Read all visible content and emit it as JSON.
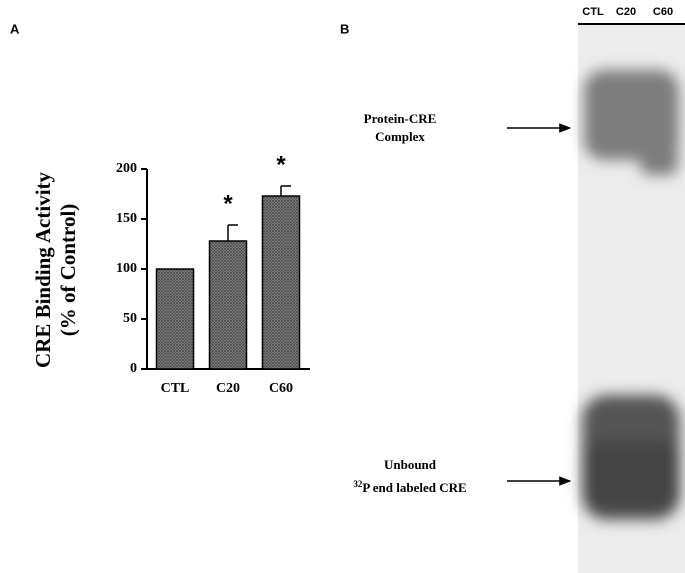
{
  "panel_labels": [
    "A",
    "B"
  ],
  "chart_data": {
    "type": "bar",
    "ylabel": [
      "CRE Binding Activity",
      "(% of Control)"
    ],
    "categories": [
      "CTL",
      "C20",
      "C60"
    ],
    "values": [
      100,
      128,
      173
    ],
    "errors": [
      0,
      16,
      10
    ],
    "annotations": [
      null,
      "*",
      "*"
    ],
    "color": "#4a4a4a",
    "ylim": [
      0,
      200
    ],
    "yticks": [
      0,
      50,
      100,
      150,
      200
    ],
    "grid": false
  },
  "gel": {
    "lanes": [
      "CTL",
      "C20",
      "C60"
    ],
    "complex_label": [
      "Protein-CRE",
      "Complex"
    ],
    "unbound_label": {
      "line1": "Unbound",
      "sup": "32",
      "line2": "P end labeled CRE"
    }
  }
}
